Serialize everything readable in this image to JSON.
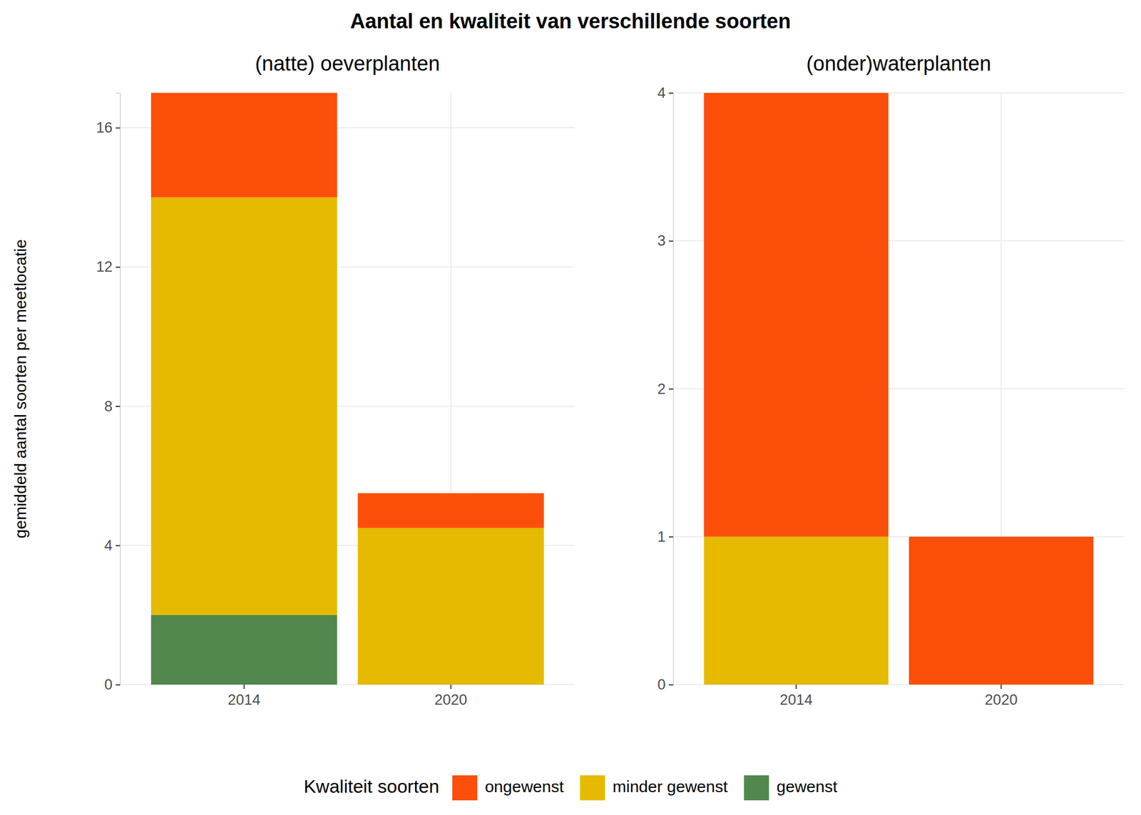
{
  "title": "Aantal en kwaliteit van verschillende soorten",
  "ylabel": "gemiddeld aantal soorten per meetlocatie",
  "legend_title": "Kwaliteit soorten",
  "chart_data": [
    {
      "type": "bar",
      "stacked": true,
      "title": "(natte) oeverplanten",
      "categories": [
        "2014",
        "2020"
      ],
      "series": [
        {
          "name": "ongewenst",
          "color": "#fc4f09",
          "values": [
            3,
            1
          ]
        },
        {
          "name": "minder gewenst",
          "color": "#e6ba00",
          "values": [
            12,
            4.5
          ]
        },
        {
          "name": "gewenst",
          "color": "#52874e",
          "values": [
            2,
            0
          ]
        }
      ],
      "ylim": [
        0,
        17
      ],
      "yticks": [
        0,
        4,
        8,
        12,
        16
      ],
      "grid": true,
      "legend": "bottom"
    },
    {
      "type": "bar",
      "stacked": true,
      "title": "(onder)waterplanten",
      "categories": [
        "2014",
        "2020"
      ],
      "series": [
        {
          "name": "ongewenst",
          "color": "#fc4f09",
          "values": [
            3,
            1
          ]
        },
        {
          "name": "minder gewenst",
          "color": "#e6ba00",
          "values": [
            1,
            0
          ]
        },
        {
          "name": "gewenst",
          "color": "#52874e",
          "values": [
            0,
            0
          ]
        }
      ],
      "ylim": [
        0,
        4
      ],
      "yticks": [
        0,
        1,
        2,
        3,
        4
      ],
      "grid": true
    }
  ]
}
